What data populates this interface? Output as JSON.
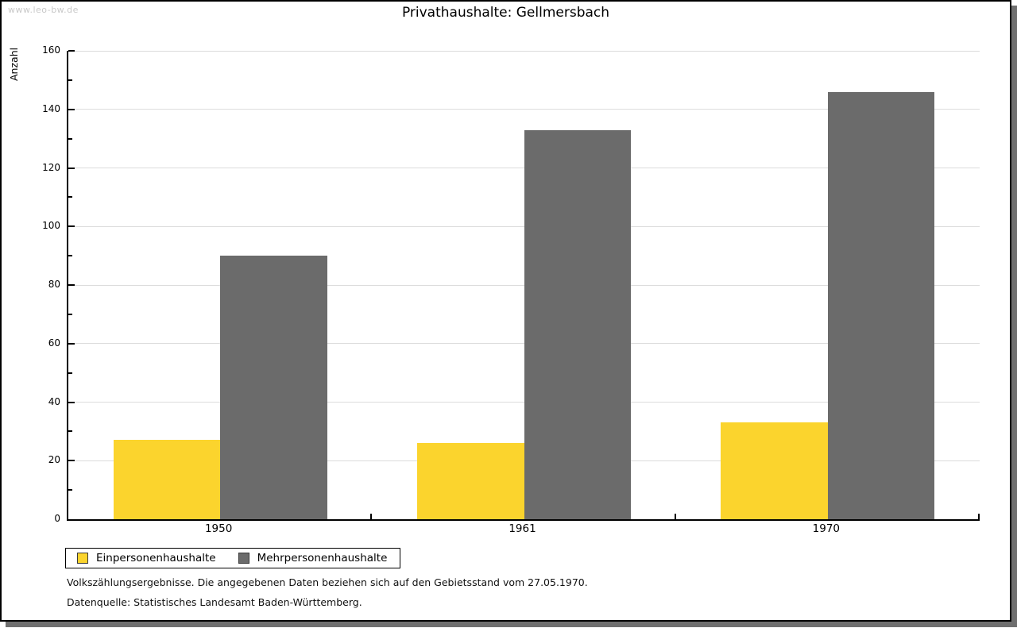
{
  "window": {
    "watermark": "www.leo-bw.de"
  },
  "chart_data": {
    "type": "bar",
    "title": "Privathaushalte: Gellmersbach",
    "xlabel": "",
    "ylabel": "Anzahl",
    "categories": [
      "1950",
      "1961",
      "1970"
    ],
    "series": [
      {
        "name": "Einpersonenhaushalte",
        "color": "#FBD42D",
        "values": [
          27,
          26,
          33
        ]
      },
      {
        "name": "Mehrpersonenhaushalte",
        "color": "#6B6B6B",
        "values": [
          90,
          133,
          146
        ]
      }
    ],
    "ylim": [
      0,
      160
    ],
    "ytick_step": 20,
    "yminor_step": 10,
    "grid": true,
    "gridline_color": "#dcdcdc",
    "legend_position": "bottom-left"
  },
  "footer": {
    "line1": "Volkszählungsergebnisse. Die angegebenen Daten beziehen sich auf den Gebietsstand vom 27.05.1970.",
    "line2": "Datenquelle: Statistisches Landesamt Baden-Württemberg."
  }
}
